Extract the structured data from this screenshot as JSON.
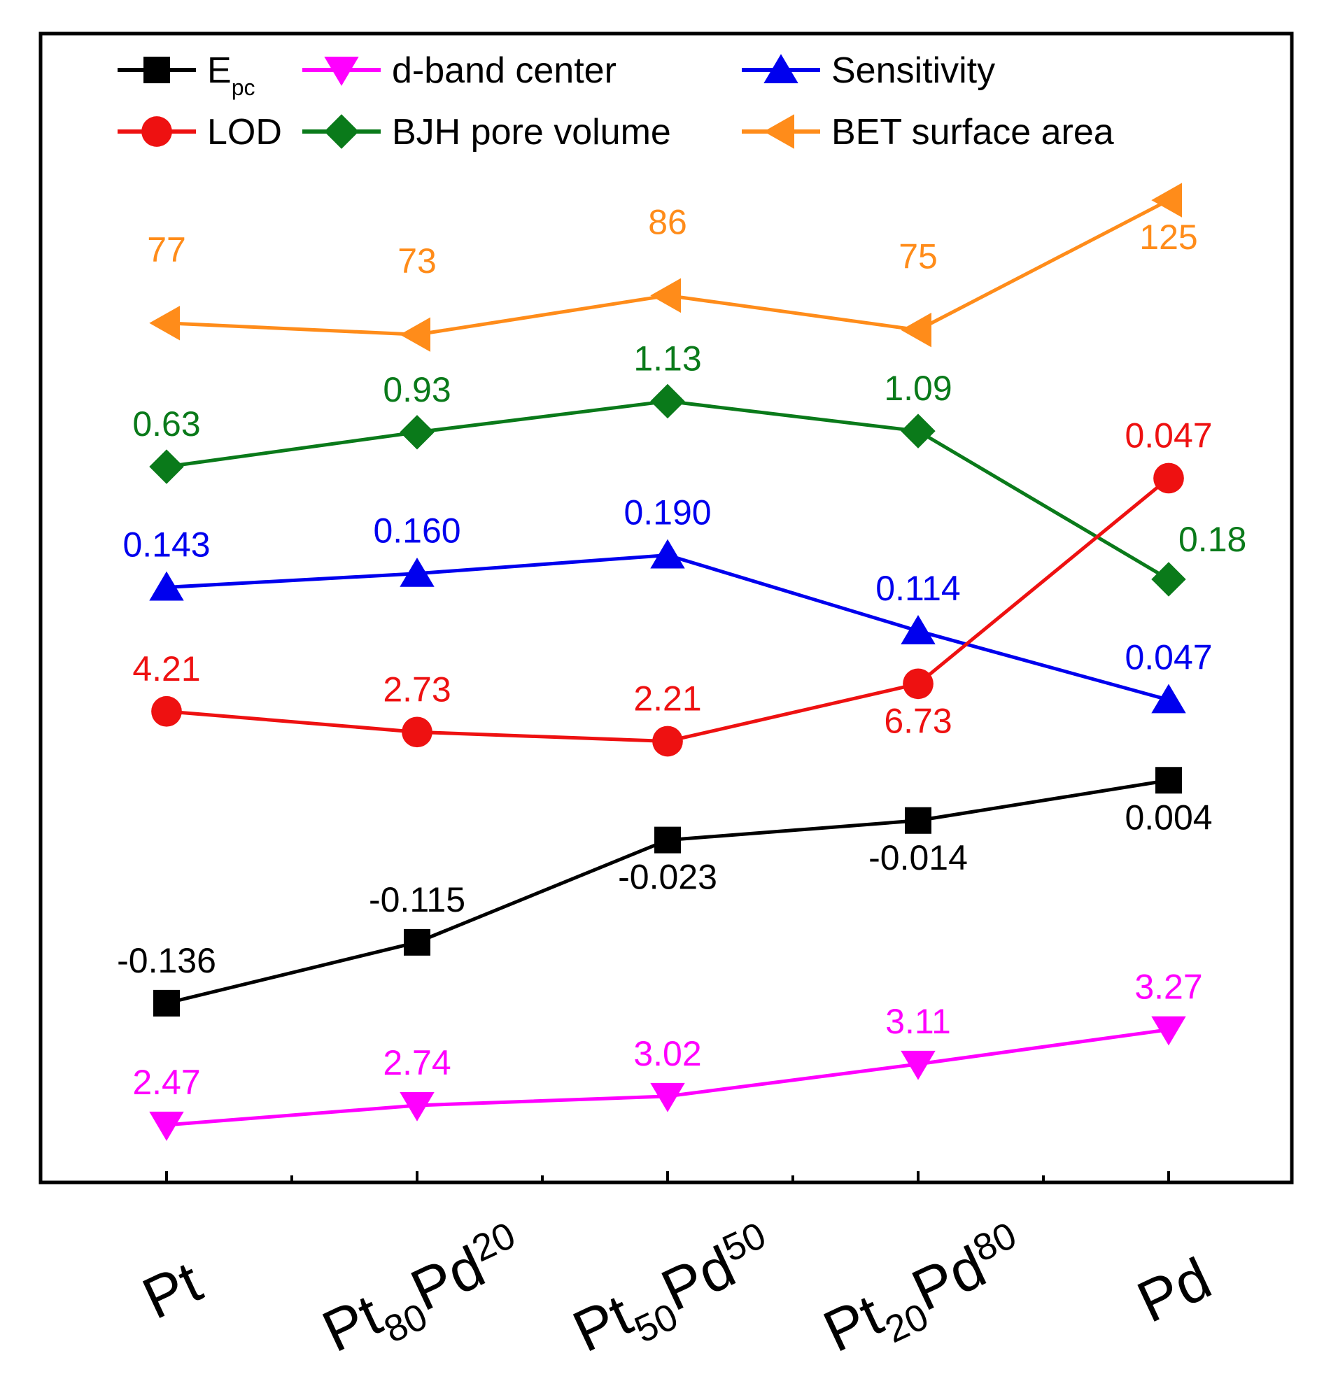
{
  "chart_data": {
    "type": "line",
    "title": "",
    "xlabel": "",
    "ylabel": "",
    "grid": false,
    "legend_position": "top-left",
    "categories": [
      {
        "base": "Pt"
      },
      {
        "base": "Pt",
        "sub1": "80",
        "mid": "Pd",
        "sub2": "20"
      },
      {
        "base": "Pt",
        "sub1": "50",
        "mid": "Pd",
        "sub2": "50"
      },
      {
        "base": "Pt",
        "sub1": "20",
        "mid": "Pd",
        "sub2": "80"
      },
      {
        "base": "Pd"
      }
    ],
    "series": [
      {
        "name": "E",
        "name_sub": "pc",
        "color": "#000000",
        "marker": "square",
        "values": [
          -0.136,
          -0.115,
          -0.023,
          -0.014,
          0.004
        ],
        "labels": [
          "-0.136",
          "-0.115",
          "-0.023",
          "-0.014",
          "0.004"
        ],
        "label_pos": [
          "above",
          "above",
          "below",
          "below",
          "below"
        ],
        "y_norm": [
          0.156,
          0.209,
          0.298,
          0.315,
          0.35
        ]
      },
      {
        "name": "d-band center",
        "color": "#ff00ff",
        "marker": "triangle-down",
        "values": [
          2.47,
          2.74,
          3.02,
          3.11,
          3.27
        ],
        "labels": [
          "2.47",
          "2.74",
          "3.02",
          "3.11",
          "3.27"
        ],
        "label_pos": [
          "above",
          "above",
          "above",
          "above",
          "above"
        ],
        "y_norm": [
          0.05,
          0.067,
          0.075,
          0.103,
          0.133
        ]
      },
      {
        "name": "Sensitivity",
        "color": "#0000ee",
        "marker": "triangle-up",
        "values": [
          0.143,
          0.16,
          0.19,
          0.114,
          0.047
        ],
        "labels": [
          "0.143",
          "0.160",
          "0.190",
          "0.114",
          "0.047"
        ],
        "label_pos": [
          "above",
          "above",
          "above",
          "above",
          "above"
        ],
        "y_norm": [
          0.518,
          0.53,
          0.546,
          0.48,
          0.42
        ]
      },
      {
        "name": "LOD",
        "color": "#ee1111",
        "marker": "circle",
        "values": [
          4.21,
          2.73,
          2.21,
          6.73,
          0.047
        ],
        "labels": [
          "4.21",
          "2.73",
          "2.21",
          "6.73",
          "0.047"
        ],
        "label_pos": [
          "above",
          "above",
          "above",
          "below",
          "above"
        ],
        "y_norm": [
          0.41,
          0.392,
          0.384,
          0.434,
          0.613
        ]
      },
      {
        "name": "BJH pore volume",
        "color": "#0a7a1a",
        "marker": "diamond",
        "values": [
          0.63,
          0.93,
          1.13,
          1.09,
          0.18
        ],
        "labels": [
          "0.63",
          "0.93",
          "1.13",
          "1.09",
          "0.18"
        ],
        "label_pos": [
          "above",
          "above",
          "above",
          "above",
          "right"
        ],
        "y_norm": [
          0.623,
          0.653,
          0.68,
          0.654,
          0.525
        ]
      },
      {
        "name": "BET surface area",
        "color": "#ff8c1a",
        "marker": "triangle-left",
        "values": [
          77,
          73,
          86,
          75,
          125
        ],
        "labels": [
          "77",
          "73",
          "86",
          "75",
          "125"
        ],
        "label_pos": [
          "above-high",
          "above-high",
          "above-high",
          "above-high",
          "below"
        ],
        "y_norm": [
          0.748,
          0.738,
          0.772,
          0.742,
          0.855
        ]
      }
    ]
  }
}
